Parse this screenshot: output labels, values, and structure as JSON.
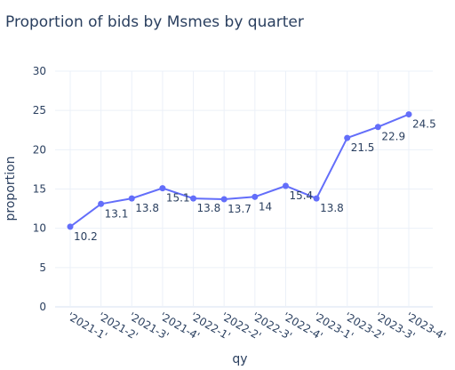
{
  "chart_data": {
    "type": "line",
    "title": "Proportion of bids  by Msmes by quarter",
    "xlabel": "qy",
    "ylabel": "proportion",
    "ylim": [
      0,
      30
    ],
    "yticks": [
      0,
      5,
      10,
      15,
      20,
      25,
      30
    ],
    "grid": true,
    "line_color": "#636efa",
    "categories": [
      "'2021-1'",
      "'2021-2'",
      "'2021-3'",
      "'2021-4'",
      "'2022-1'",
      "'2022-2'",
      "'2022-3'",
      "'2022-4'",
      "'2023-1'",
      "'2023-2'",
      "'2023-3'",
      "'2023-4'"
    ],
    "values": [
      10.2,
      13.1,
      13.8,
      15.1,
      13.8,
      13.7,
      14,
      15.4,
      13.8,
      21.5,
      22.9,
      24.5
    ],
    "data_labels": [
      "10.2",
      "13.1",
      "13.8",
      "15.1",
      "13.8",
      "13.7",
      "14",
      "15.4",
      "13.8",
      "21.5",
      "22.9",
      "24.5"
    ]
  }
}
